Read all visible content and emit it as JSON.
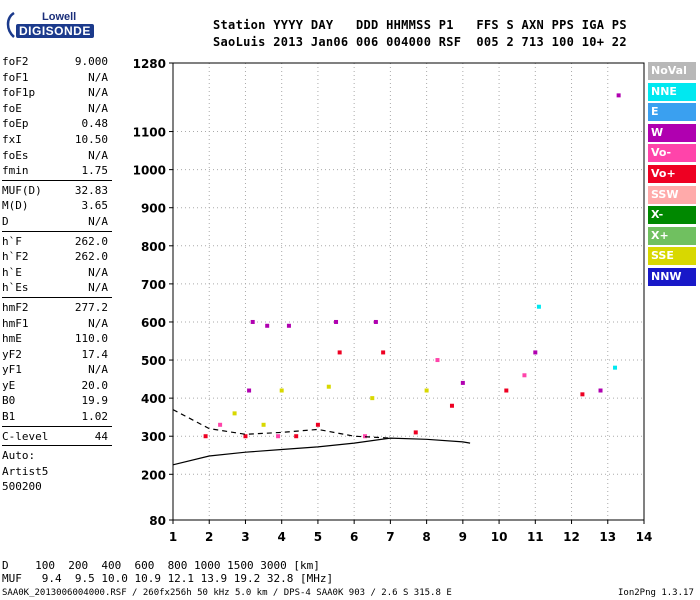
{
  "logo": {
    "line1": "Lowell",
    "line2": "DIGISONDE"
  },
  "header": {
    "labels_line": "Station YYYY DAY   DDD HHMMSS P1   FFS S AXN PPS IGA PS",
    "values_line": "SaoLuis 2013 Jan06 006 004000 RSF  005 2 713 100 10+ 22"
  },
  "sidebar": {
    "group1": [
      {
        "k": "foF2",
        "v": "9.000"
      },
      {
        "k": "foF1",
        "v": "N/A"
      },
      {
        "k": "foF1p",
        "v": "N/A"
      },
      {
        "k": "foE",
        "v": "N/A"
      },
      {
        "k": "foEp",
        "v": "0.48"
      },
      {
        "k": "fxI",
        "v": "10.50"
      },
      {
        "k": "foEs",
        "v": "N/A"
      },
      {
        "k": "fmin",
        "v": "1.75"
      }
    ],
    "group2": [
      {
        "k": "MUF(D)",
        "v": "32.83"
      },
      {
        "k": "M(D)",
        "v": "3.65"
      },
      {
        "k": "D",
        "v": "N/A"
      }
    ],
    "group3": [
      {
        "k": "h`F",
        "v": "262.0"
      },
      {
        "k": "h`F2",
        "v": "262.0"
      },
      {
        "k": "h`E",
        "v": "N/A"
      },
      {
        "k": "h`Es",
        "v": "N/A"
      }
    ],
    "group4": [
      {
        "k": "hmF2",
        "v": "277.2"
      },
      {
        "k": "hmF1",
        "v": "N/A"
      },
      {
        "k": "hmE",
        "v": "110.0"
      },
      {
        "k": "yF2",
        "v": "17.4"
      },
      {
        "k": "yF1",
        "v": "N/A"
      },
      {
        "k": "yE",
        "v": "20.0"
      },
      {
        "k": "B0",
        "v": "19.9"
      },
      {
        "k": "B1",
        "v": "1.02"
      }
    ],
    "group5": [
      {
        "k": "C-level",
        "v": "44"
      }
    ],
    "auto_lines": [
      "Auto:",
      "Artist5",
      "500200"
    ]
  },
  "legend": [
    {
      "label": "NoVal",
      "bg": "#b8b8b8",
      "fg": "#ffffff"
    },
    {
      "label": "NNE",
      "bg": "#00e8f0",
      "fg": "#ffffff"
    },
    {
      "label": "E",
      "bg": "#3aa0f0",
      "fg": "#ffffff"
    },
    {
      "label": "W",
      "bg": "#b000b0",
      "fg": "#ffffff"
    },
    {
      "label": "Vo-",
      "bg": "#ff44aa",
      "fg": "#ffffff"
    },
    {
      "label": "Vo+",
      "bg": "#ee0022",
      "fg": "#ffffff"
    },
    {
      "label": "SSW",
      "bg": "#ffaaaa",
      "fg": "#ffffff"
    },
    {
      "label": "X-",
      "bg": "#008800",
      "fg": "#ffffff"
    },
    {
      "label": "X+",
      "bg": "#70c060",
      "fg": "#ffffff"
    },
    {
      "label": "SSE",
      "bg": "#d8d800",
      "fg": "#ffffff"
    },
    {
      "label": "NNW",
      "bg": "#1818c8",
      "fg": "#ffffff"
    }
  ],
  "bottom": {
    "d_line": "D    100  200  400  600  800 1000 1500 3000 [km]",
    "muf_line": "MUF   9.4  9.5 10.0 10.9 12.1 13.9 19.2 32.8 [MHz]"
  },
  "footer": {
    "left": "SAA0K_2013006004000.RSF / 260fx256h 50 kHz 5.0 km / DPS-4 SAA0K 903 / 2.6 S 315.8 E",
    "right": "Ion2Png 1.3.17"
  },
  "chart_data": {
    "type": "scatter",
    "title": "",
    "xlabel": "",
    "ylabel": "",
    "xlim": [
      1,
      14
    ],
    "ylim": [
      80,
      1280
    ],
    "x_ticks": [
      "1",
      "2",
      "3",
      "4",
      "5",
      "6",
      "7",
      "8",
      "9",
      "10",
      "11",
      "12",
      "13",
      "14"
    ],
    "y_ticks": [
      {
        "label": "80",
        "value": 80
      },
      {
        "label": "200",
        "value": 200
      },
      {
        "label": "300",
        "value": 300
      },
      {
        "label": "400",
        "value": 400
      },
      {
        "label": "500",
        "value": 500
      },
      {
        "label": "600",
        "value": 600
      },
      {
        "label": "700",
        "value": 700
      },
      {
        "label": "800",
        "value": 800
      },
      {
        "label": "900",
        "value": 900
      },
      {
        "label": "1000",
        "value": 1000
      },
      {
        "label": "1100",
        "value": 1100
      },
      {
        "label": "1280",
        "value": 1280
      }
    ],
    "grid": "dotted",
    "series": [
      {
        "id": "echo-clusters",
        "points": [
          {
            "x": 1.9,
            "y": 300,
            "c": "#ee0022"
          },
          {
            "x": 2.3,
            "y": 330,
            "c": "#ff44aa"
          },
          {
            "x": 2.7,
            "y": 360,
            "c": "#d8d800"
          },
          {
            "x": 3.0,
            "y": 300,
            "c": "#ee0022"
          },
          {
            "x": 3.1,
            "y": 420,
            "c": "#b000b0"
          },
          {
            "x": 3.2,
            "y": 600,
            "c": "#b000b0"
          },
          {
            "x": 3.5,
            "y": 330,
            "c": "#d8d800"
          },
          {
            "x": 3.6,
            "y": 590,
            "c": "#b000b0"
          },
          {
            "x": 3.9,
            "y": 300,
            "c": "#ff44aa"
          },
          {
            "x": 4.0,
            "y": 420,
            "c": "#d8d800"
          },
          {
            "x": 4.2,
            "y": 590,
            "c": "#b000b0"
          },
          {
            "x": 4.4,
            "y": 300,
            "c": "#ee0022"
          },
          {
            "x": 5.0,
            "y": 330,
            "c": "#ee0022"
          },
          {
            "x": 5.3,
            "y": 430,
            "c": "#d8d800"
          },
          {
            "x": 5.5,
            "y": 600,
            "c": "#b000b0"
          },
          {
            "x": 5.6,
            "y": 520,
            "c": "#ee0022"
          },
          {
            "x": 6.3,
            "y": 300,
            "c": "#ff44aa"
          },
          {
            "x": 6.5,
            "y": 400,
            "c": "#d8d800"
          },
          {
            "x": 6.6,
            "y": 600,
            "c": "#b000b0"
          },
          {
            "x": 6.8,
            "y": 520,
            "c": "#ee0022"
          },
          {
            "x": 7.7,
            "y": 310,
            "c": "#ee0022"
          },
          {
            "x": 8.0,
            "y": 420,
            "c": "#d8d800"
          },
          {
            "x": 8.3,
            "y": 500,
            "c": "#ff44aa"
          },
          {
            "x": 8.7,
            "y": 380,
            "c": "#ee0022"
          },
          {
            "x": 9.0,
            "y": 440,
            "c": "#b000b0"
          },
          {
            "x": 10.2,
            "y": 420,
            "c": "#ee0022"
          },
          {
            "x": 10.7,
            "y": 460,
            "c": "#ff44aa"
          },
          {
            "x": 11.0,
            "y": 520,
            "c": "#b000b0"
          },
          {
            "x": 11.1,
            "y": 640,
            "c": "#00e8f0"
          },
          {
            "x": 12.3,
            "y": 410,
            "c": "#ee0022"
          },
          {
            "x": 12.8,
            "y": 420,
            "c": "#b000b0"
          },
          {
            "x": 13.2,
            "y": 480,
            "c": "#00e8f0"
          },
          {
            "x": 13.3,
            "y": 1195,
            "c": "#b000b0"
          }
        ]
      }
    ],
    "curves": [
      {
        "id": "virtual-height-trace",
        "color": "#000000",
        "points": [
          [
            1,
            225
          ],
          [
            2,
            248
          ],
          [
            3,
            258
          ],
          [
            4,
            265
          ],
          [
            5,
            272
          ],
          [
            6,
            282
          ],
          [
            7,
            295
          ],
          [
            8,
            292
          ],
          [
            9,
            285
          ],
          [
            9.2,
            282
          ]
        ]
      },
      {
        "id": "profile-dashed",
        "color": "#000000",
        "dashed": true,
        "points": [
          [
            1,
            370
          ],
          [
            2,
            320
          ],
          [
            3,
            305
          ],
          [
            4,
            310
          ],
          [
            5,
            318
          ],
          [
            6,
            300
          ],
          [
            7,
            295
          ]
        ]
      }
    ]
  }
}
